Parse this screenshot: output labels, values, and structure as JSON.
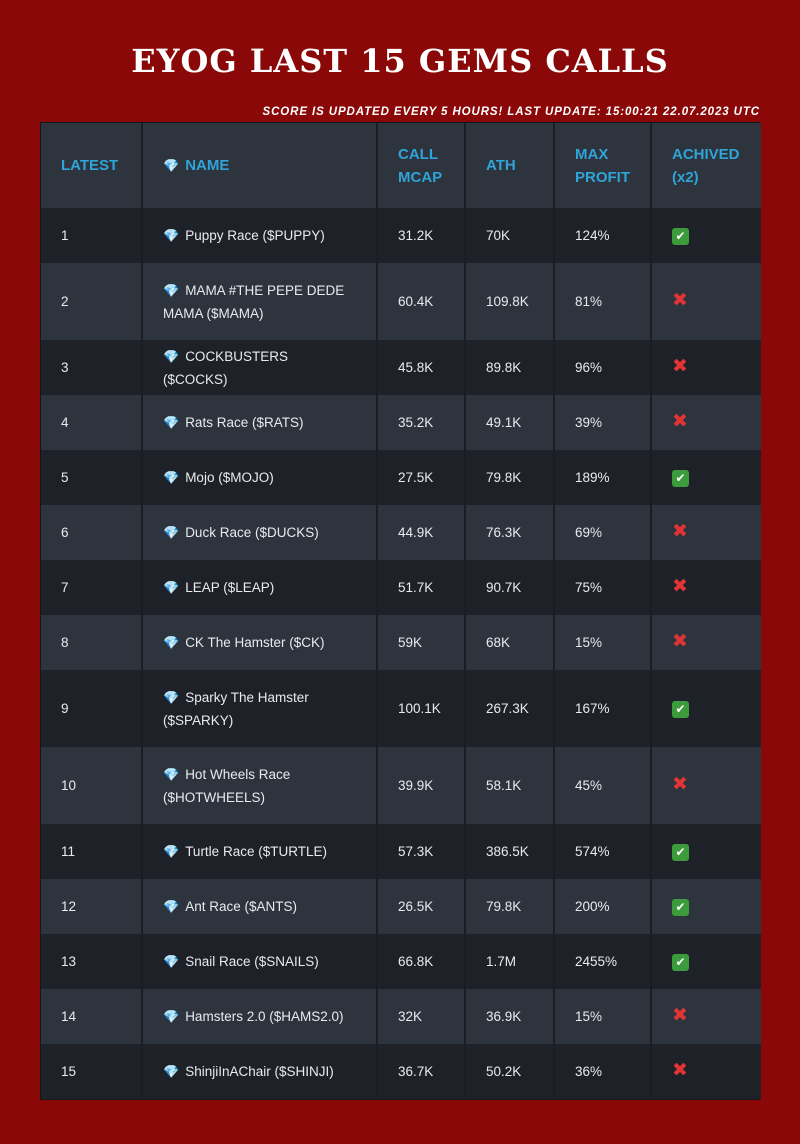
{
  "header": {
    "title": "EYOG LAST 15 GEMS CALLS",
    "subtitle": "SCORE IS UPDATED EVERY 5 HOURS! LAST UPDATE: 15:00:21 22.07.2023 UTC"
  },
  "table": {
    "columns": {
      "latest": "LATEST",
      "name_icon": "💎",
      "name": "NAME",
      "call_mcap_1": "CALL",
      "call_mcap_2": "MCAP",
      "ath": "ATH",
      "max_profit_1": "MAX",
      "max_profit_2": "PROFIT",
      "achived_1": "ACHIVED",
      "achived_2": "(x2)"
    },
    "icons": {
      "gem": "gem-icon",
      "yes": "check-mark-icon",
      "no": "cross-mark-icon"
    },
    "colors": {
      "background": "#8b0808",
      "header_text": "#2ea4d8",
      "check": "#3c9c3c",
      "cross": "#e23434"
    },
    "rows": [
      {
        "latest": "1",
        "gem": "💎",
        "name": "Puppy Race ($PUPPY)",
        "call_mcap": "31.2K",
        "ath": "70K",
        "max_profit": "124%",
        "achived": "✔",
        "achived_state": "yes"
      },
      {
        "latest": "2",
        "gem": "💎",
        "name": "MAMA #THE PEPE DEDE MAMA ($MAMA)",
        "call_mcap": "60.4K",
        "ath": "109.8K",
        "max_profit": "81%",
        "achived": "✖",
        "achived_state": "no"
      },
      {
        "latest": "3",
        "gem": "💎",
        "name": "COCKBUSTERS ($COCKS)",
        "call_mcap": "45.8K",
        "ath": "89.8K",
        "max_profit": "96%",
        "achived": "✖",
        "achived_state": "no"
      },
      {
        "latest": "4",
        "gem": "💎",
        "name": "Rats Race ($RATS)",
        "call_mcap": "35.2K",
        "ath": "49.1K",
        "max_profit": "39%",
        "achived": "✖",
        "achived_state": "no"
      },
      {
        "latest": "5",
        "gem": "💎",
        "name": "Mojo ($MOJO)",
        "call_mcap": "27.5K",
        "ath": "79.8K",
        "max_profit": "189%",
        "achived": "✔",
        "achived_state": "yes"
      },
      {
        "latest": "6",
        "gem": "💎",
        "name": "Duck Race ($DUCKS)",
        "call_mcap": "44.9K",
        "ath": "76.3K",
        "max_profit": "69%",
        "achived": "✖",
        "achived_state": "no"
      },
      {
        "latest": "7",
        "gem": "💎",
        "name": "LEAP ($LEAP)",
        "call_mcap": "51.7K",
        "ath": "90.7K",
        "max_profit": "75%",
        "achived": "✖",
        "achived_state": "no"
      },
      {
        "latest": "8",
        "gem": "💎",
        "name": "CK The Hamster ($CK)",
        "call_mcap": "59K",
        "ath": "68K",
        "max_profit": "15%",
        "achived": "✖",
        "achived_state": "no"
      },
      {
        "latest": "9",
        "gem": "💎",
        "name": "Sparky The Hamster ($SPARKY)",
        "call_mcap": "100.1K",
        "ath": "267.3K",
        "max_profit": "167%",
        "achived": "✔",
        "achived_state": "yes"
      },
      {
        "latest": "10",
        "gem": "💎",
        "name": "Hot Wheels Race ($HOTWHEELS)",
        "call_mcap": "39.9K",
        "ath": "58.1K",
        "max_profit": "45%",
        "achived": "✖",
        "achived_state": "no"
      },
      {
        "latest": "11",
        "gem": "💎",
        "name": "Turtle Race ($TURTLE)",
        "call_mcap": "57.3K",
        "ath": "386.5K",
        "max_profit": "574%",
        "achived": "✔",
        "achived_state": "yes"
      },
      {
        "latest": "12",
        "gem": "💎",
        "name": "Ant Race ($ANTS)",
        "call_mcap": "26.5K",
        "ath": "79.8K",
        "max_profit": "200%",
        "achived": "✔",
        "achived_state": "yes"
      },
      {
        "latest": "13",
        "gem": "💎",
        "name": "Snail Race ($SNAILS)",
        "call_mcap": "66.8K",
        "ath": "1.7M",
        "max_profit": "2455%",
        "achived": "✔",
        "achived_state": "yes"
      },
      {
        "latest": "14",
        "gem": "💎",
        "name": "Hamsters 2.0 ($HAMS2.0)",
        "call_mcap": "32K",
        "ath": "36.9K",
        "max_profit": "15%",
        "achived": "✖",
        "achived_state": "no"
      },
      {
        "latest": "15",
        "gem": "💎",
        "name": "ShinjiInAChair ($SHINJI)",
        "call_mcap": "36.7K",
        "ath": "50.2K",
        "max_profit": "36%",
        "achived": "✖",
        "achived_state": "no"
      }
    ]
  }
}
